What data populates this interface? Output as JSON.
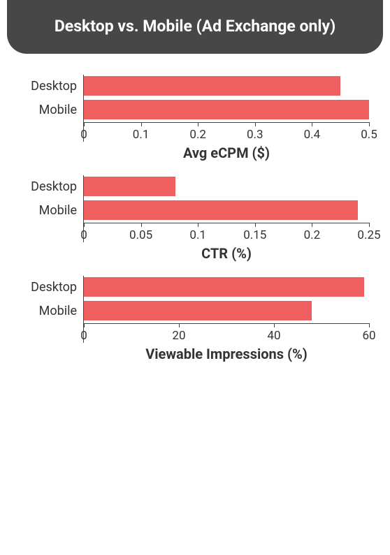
{
  "header": {
    "title": "Desktop vs. Mobile (Ad Exchange only)",
    "background_color": "#474747",
    "text_color": "#ffffff"
  },
  "colors": {
    "bar": "#f05f5f",
    "text": "#333333",
    "axis": "#444444",
    "background": "#ffffff"
  },
  "chart_layout": {
    "category_label_fontsize": 18,
    "tick_label_fontsize": 17,
    "xtitle_fontsize": 20,
    "bar_row_height": 32,
    "bar_inset": 2,
    "cat_label_width": 90
  },
  "charts": [
    {
      "type": "bar-horizontal",
      "x_title": "Avg eCPM ($)",
      "xlim": [
        0,
        0.5
      ],
      "xticks": [
        0,
        0.1,
        0.2,
        0.3,
        0.4,
        0.5
      ],
      "xtick_labels": [
        "0",
        "0.1",
        "0.2",
        "0.3",
        "0.4",
        "0.5"
      ],
      "categories": [
        "Desktop",
        "Mobile"
      ],
      "values": [
        0.45,
        0.5
      ],
      "bar_color": "#f05f5f"
    },
    {
      "type": "bar-horizontal",
      "x_title": "CTR (%)",
      "xlim": [
        0,
        0.25
      ],
      "xticks": [
        0,
        0.05,
        0.1,
        0.15,
        0.2,
        0.25
      ],
      "xtick_labels": [
        "0",
        "0.05",
        "0.1",
        "0.15",
        "0.2",
        "0.25"
      ],
      "categories": [
        "Desktop",
        "Mobile"
      ],
      "values": [
        0.08,
        0.24
      ],
      "bar_color": "#f05f5f"
    },
    {
      "type": "bar-horizontal",
      "x_title": "Viewable Impressions (%)",
      "xlim": [
        0,
        60
      ],
      "xticks": [
        0,
        20,
        40,
        60
      ],
      "xtick_labels": [
        "0",
        "20",
        "40",
        "60"
      ],
      "categories": [
        "Desktop",
        "Mobile"
      ],
      "values": [
        59,
        48
      ],
      "bar_color": "#f05f5f"
    }
  ]
}
